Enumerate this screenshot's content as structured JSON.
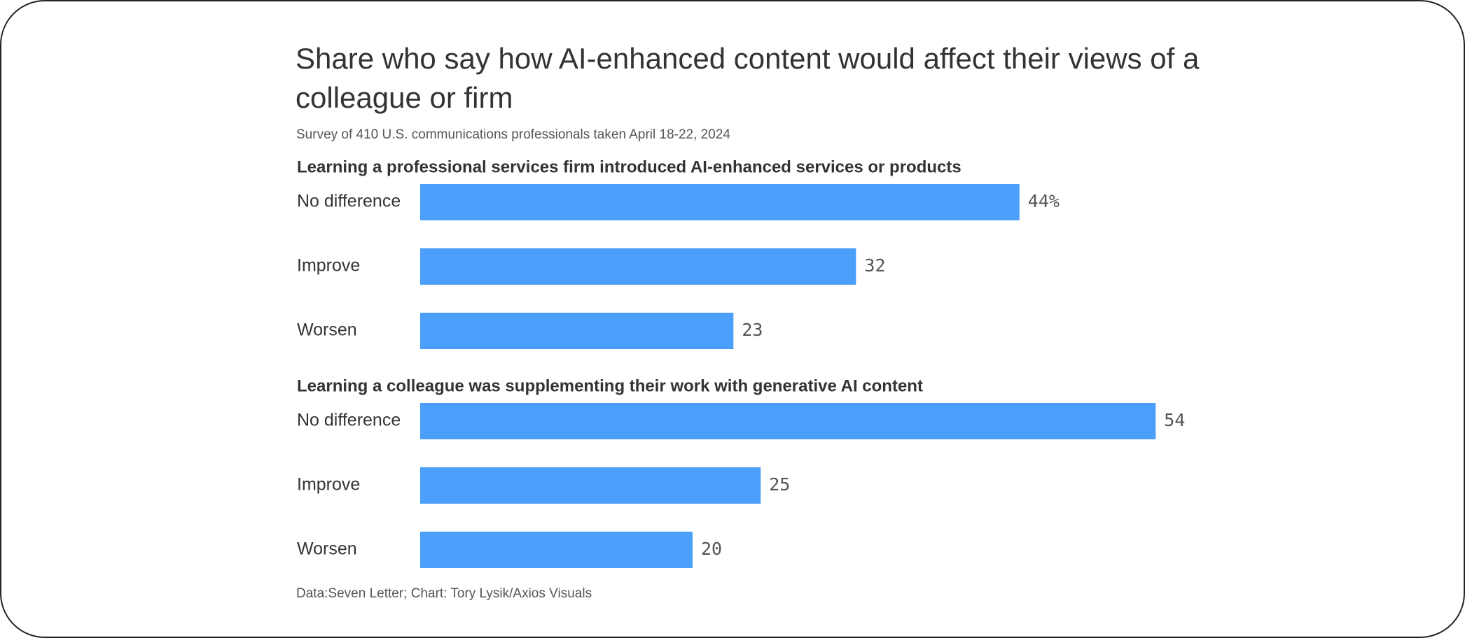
{
  "chart_data": {
    "type": "bar",
    "orientation": "horizontal",
    "title": "Share who say how AI-enhanced content would affect their views of a colleague or firm",
    "subtitle": "Survey of 410 U.S. communications professionals taken April 18-22, 2024",
    "footer": "Data:Seven Letter; Chart: Tory Lysik/Axios Visuals",
    "bar_color": "#4b9ffa",
    "xlim": [
      0,
      60
    ],
    "grid": false,
    "groups": [
      {
        "title": "Learning a professional services firm introduced AI-enhanced services or products",
        "categories": [
          "No difference",
          "Improve",
          "Worsen"
        ],
        "values": [
          44,
          32,
          23
        ],
        "value_labels": [
          "44%",
          "32",
          "23"
        ]
      },
      {
        "title": "Learning a colleague was supplementing their work with generative AI content",
        "categories": [
          "No difference",
          "Improve",
          "Worsen"
        ],
        "values": [
          54,
          25,
          20
        ],
        "value_labels": [
          "54",
          "25",
          "20"
        ]
      }
    ]
  }
}
